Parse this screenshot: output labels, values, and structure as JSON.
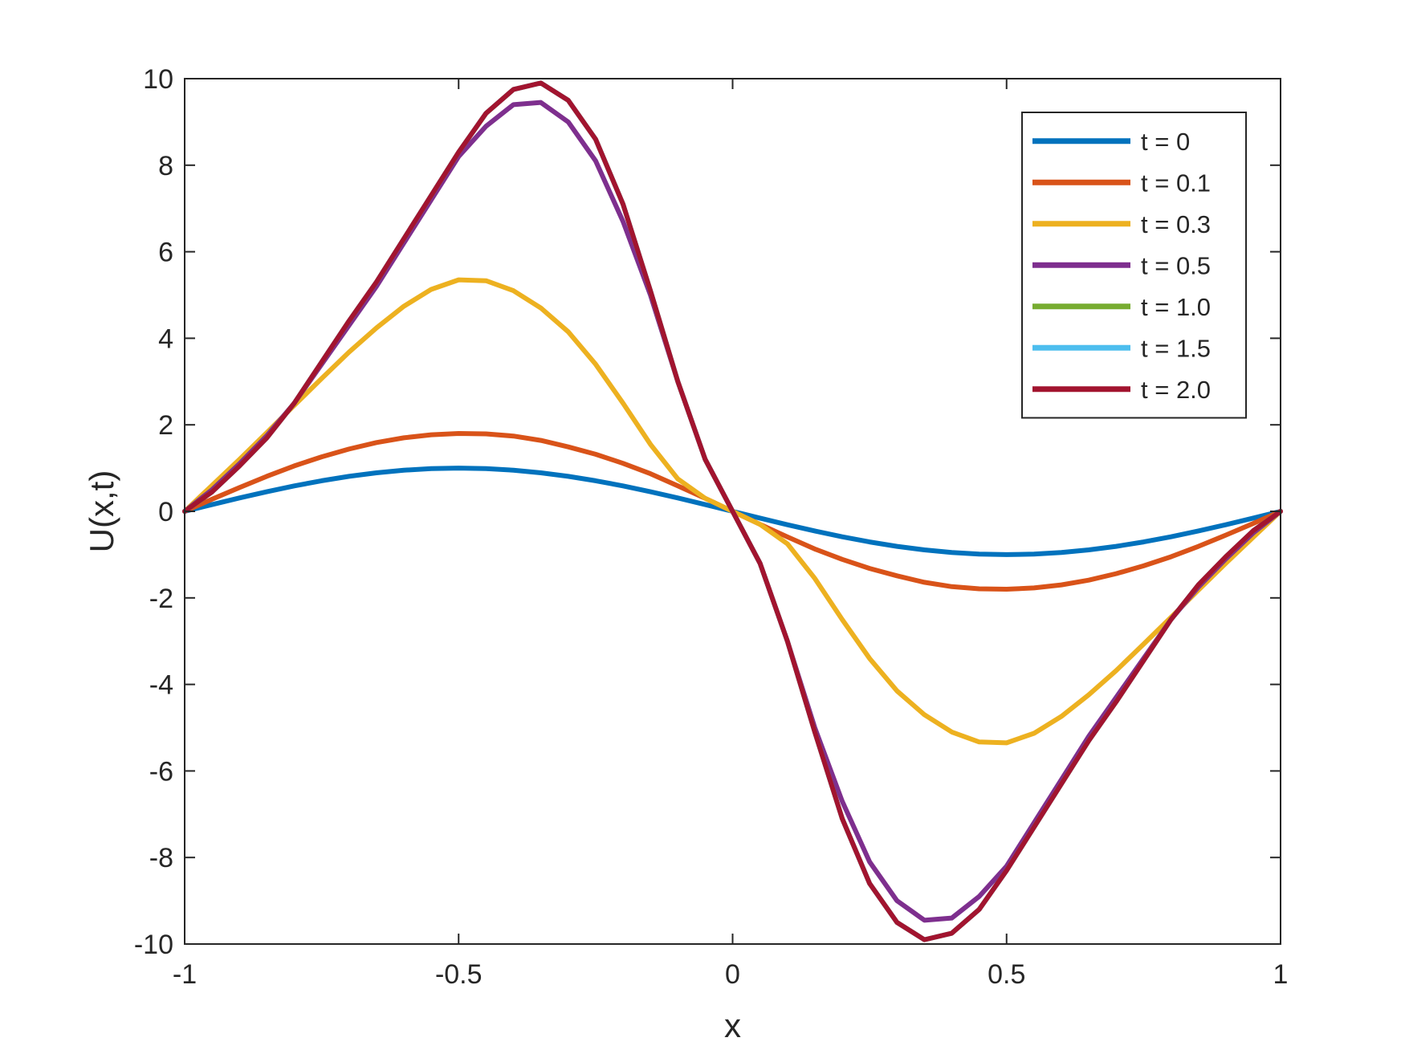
{
  "chart_data": {
    "type": "line",
    "title": "",
    "xlabel": "x",
    "ylabel": "U(x,t)",
    "xlim": [
      -1,
      1
    ],
    "ylim": [
      -10,
      10
    ],
    "xticks": [
      -1,
      -0.5,
      0,
      0.5,
      1
    ],
    "xtick_labels": [
      "-1",
      "-0.5",
      "0",
      "0.5",
      "1"
    ],
    "yticks": [
      -10,
      -8,
      -6,
      -4,
      -2,
      0,
      2,
      4,
      6,
      8,
      10
    ],
    "ytick_labels": [
      "-10",
      "-8",
      "-6",
      "-4",
      "-2",
      "0",
      "2",
      "4",
      "6",
      "8",
      "10"
    ],
    "grid": false,
    "legend_position": "top-right",
    "x": [
      -1,
      -0.95,
      -0.9,
      -0.85,
      -0.8,
      -0.75,
      -0.7,
      -0.65,
      -0.6,
      -0.55,
      -0.5,
      -0.45,
      -0.4,
      -0.35,
      -0.3,
      -0.25,
      -0.2,
      -0.15,
      -0.1,
      -0.05,
      0,
      0.05,
      0.1,
      0.15,
      0.2,
      0.25,
      0.3,
      0.35,
      0.4,
      0.45,
      0.5,
      0.55,
      0.6,
      0.65,
      0.7,
      0.75,
      0.8,
      0.85,
      0.9,
      0.95,
      1
    ],
    "series": [
      {
        "name": "t = 0",
        "color": "#0072BD",
        "values": [
          0,
          0.156,
          0.309,
          0.454,
          0.588,
          0.707,
          0.809,
          0.891,
          0.951,
          0.988,
          1.0,
          0.988,
          0.951,
          0.891,
          0.809,
          0.707,
          0.588,
          0.454,
          0.309,
          0.156,
          0,
          -0.156,
          -0.309,
          -0.454,
          -0.588,
          -0.707,
          -0.809,
          -0.891,
          -0.951,
          -0.988,
          -1.0,
          -0.988,
          -0.951,
          -0.891,
          -0.809,
          -0.707,
          -0.588,
          -0.454,
          -0.309,
          -0.156,
          0
        ]
      },
      {
        "name": "t = 0.1",
        "color": "#D95319",
        "values": [
          0,
          0.28,
          0.55,
          0.81,
          1.05,
          1.26,
          1.44,
          1.59,
          1.7,
          1.77,
          1.8,
          1.79,
          1.74,
          1.64,
          1.49,
          1.32,
          1.11,
          0.87,
          0.59,
          0.3,
          0,
          -0.3,
          -0.59,
          -0.87,
          -1.11,
          -1.32,
          -1.49,
          -1.64,
          -1.74,
          -1.79,
          -1.8,
          -1.77,
          -1.7,
          -1.59,
          -1.44,
          -1.26,
          -1.05,
          -0.81,
          -0.55,
          -0.28,
          0
        ]
      },
      {
        "name": " t = 0.3",
        "color": "#EDB120",
        "values": [
          0,
          0.6,
          1.2,
          1.82,
          2.45,
          3.07,
          3.68,
          4.24,
          4.74,
          5.13,
          5.35,
          5.33,
          5.1,
          4.7,
          4.15,
          3.4,
          2.5,
          1.55,
          0.75,
          0.3,
          0,
          -0.3,
          -0.75,
          -1.55,
          -2.5,
          -3.4,
          -4.15,
          -4.7,
          -5.1,
          -5.33,
          -5.35,
          -5.13,
          -4.74,
          -4.24,
          -3.68,
          -3.07,
          -2.45,
          -1.82,
          -1.2,
          -0.6,
          0
        ]
      },
      {
        "name": "t = 0.5",
        "color": "#7E2F8E",
        "values": [
          0,
          0.5,
          1.1,
          1.75,
          2.5,
          3.4,
          4.3,
          5.2,
          6.2,
          7.2,
          8.2,
          8.9,
          9.4,
          9.45,
          9.0,
          8.1,
          6.7,
          5.0,
          3.0,
          1.2,
          0,
          -1.2,
          -3.0,
          -5.0,
          -6.7,
          -8.1,
          -9.0,
          -9.45,
          -9.4,
          -8.9,
          -8.2,
          -7.2,
          -6.2,
          -5.2,
          -4.3,
          -3.4,
          -2.5,
          -1.75,
          -1.1,
          -0.5,
          0
        ]
      },
      {
        "name": "t = 1.0",
        "color": "#77AC30",
        "values": [
          0,
          0.45,
          1.05,
          1.7,
          2.5,
          3.45,
          4.4,
          5.3,
          6.3,
          7.3,
          8.3,
          9.2,
          9.75,
          9.9,
          9.5,
          8.6,
          7.1,
          5.1,
          3.0,
          1.2,
          0,
          -1.2,
          -3.0,
          -5.1,
          -7.1,
          -8.6,
          -9.5,
          -9.9,
          -9.75,
          -9.2,
          -8.3,
          -7.3,
          -6.3,
          -5.3,
          -4.4,
          -3.45,
          -2.5,
          -1.7,
          -1.05,
          -0.45,
          0
        ]
      },
      {
        "name": "t = 1.5",
        "color": "#4DBEEE",
        "values": [
          0,
          0.45,
          1.05,
          1.7,
          2.5,
          3.45,
          4.4,
          5.3,
          6.3,
          7.3,
          8.3,
          9.2,
          9.75,
          9.9,
          9.5,
          8.6,
          7.1,
          5.1,
          3.0,
          1.2,
          0,
          -1.2,
          -3.0,
          -5.1,
          -7.1,
          -8.6,
          -9.5,
          -9.9,
          -9.75,
          -9.2,
          -8.3,
          -7.3,
          -6.3,
          -5.3,
          -4.4,
          -3.45,
          -2.5,
          -1.7,
          -1.05,
          -0.45,
          0
        ]
      },
      {
        "name": "t = 2.0",
        "color": "#A2142F",
        "values": [
          0,
          0.45,
          1.05,
          1.7,
          2.5,
          3.45,
          4.4,
          5.3,
          6.3,
          7.3,
          8.3,
          9.2,
          9.75,
          9.9,
          9.5,
          8.6,
          7.1,
          5.1,
          3.0,
          1.2,
          0,
          -1.2,
          -3.0,
          -5.1,
          -7.1,
          -8.6,
          -9.5,
          -9.9,
          -9.75,
          -9.2,
          -8.3,
          -7.3,
          -6.3,
          -5.3,
          -4.4,
          -3.45,
          -2.5,
          -1.7,
          -1.05,
          -0.45,
          0
        ]
      }
    ]
  }
}
